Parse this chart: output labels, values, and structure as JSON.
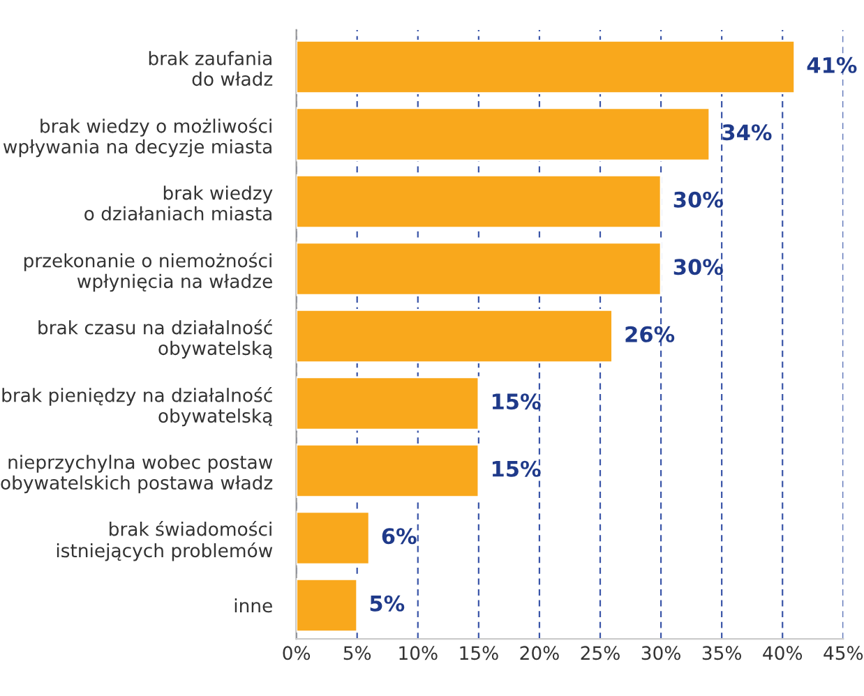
{
  "chart_data": {
    "type": "bar",
    "orientation": "horizontal",
    "categories": [
      "brak zaufania\ndo władz",
      "brak wiedzy o możliwości\nwpływania na decyzje miasta",
      "brak wiedzy\no działaniach miasta",
      "przekonanie o niemożności\nwpłynięcia na władze",
      "brak czasu na działalność\nobywatelską",
      "brak pieniędzy na działalność\nobywatelską",
      "nieprzychylna wobec postaw\nobywatelskich postawa władz",
      "brak świadomości\nistniejących problemów",
      "inne"
    ],
    "values": [
      41,
      34,
      30,
      30,
      26,
      15,
      15,
      6,
      5
    ],
    "value_labels": [
      "41%",
      "34%",
      "30%",
      "30%",
      "26%",
      "15%",
      "15%",
      "6%",
      "5%"
    ],
    "color": "#f9a81c",
    "xlim": [
      0,
      45
    ],
    "xticks": [
      {
        "value": 0,
        "label": "0%"
      },
      {
        "value": 5,
        "label": "5%"
      },
      {
        "value": 10,
        "label": "10%"
      },
      {
        "value": 15,
        "label": "15%"
      },
      {
        "value": 20,
        "label": "20%"
      },
      {
        "value": 25,
        "label": "25%"
      },
      {
        "value": 30,
        "label": "30%"
      },
      {
        "value": 35,
        "label": "35%"
      },
      {
        "value": 40,
        "label": "40%"
      },
      {
        "value": 45,
        "label": "45%"
      }
    ],
    "grid": "x"
  }
}
